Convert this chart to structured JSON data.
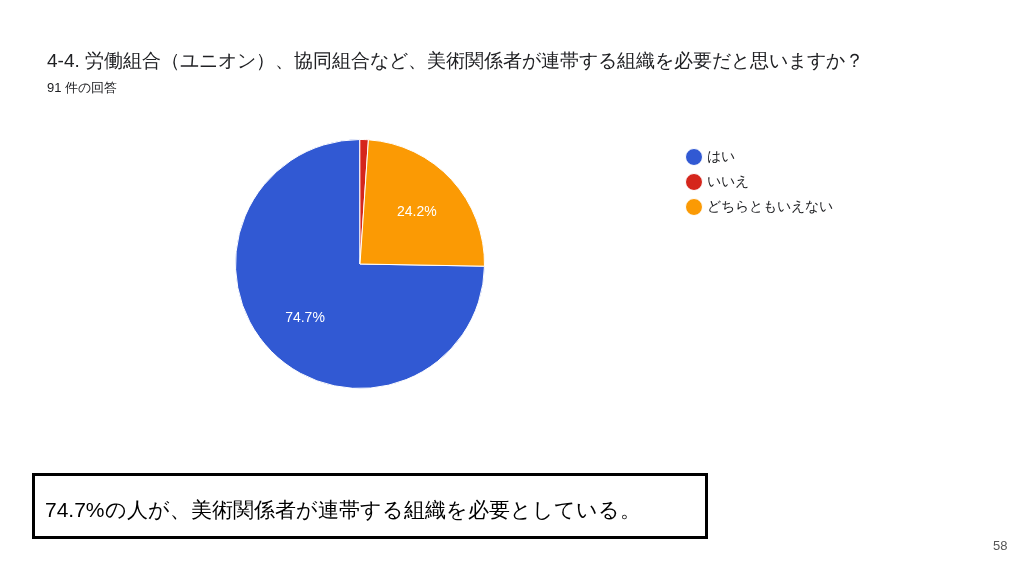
{
  "chart_data": {
    "type": "pie",
    "title": "4-4. 労働組合（ユニオン）、協同組合など、美術関係者が連帯する組織を必要だと思いますか？",
    "subtitle": "91 件の回答",
    "categories": [
      "はい",
      "いいえ",
      "どちらともいえない"
    ],
    "values": [
      74.7,
      1.1,
      24.2
    ],
    "colors": [
      "#3159d3",
      "#d5261c",
      "#fb9a04"
    ],
    "value_labels": [
      "74.7%",
      null,
      "24.2%"
    ],
    "legend": "right",
    "annotations": [
      "74.7%の人が、美術関係者が連帯する組織を必要としている。",
      "58"
    ]
  }
}
